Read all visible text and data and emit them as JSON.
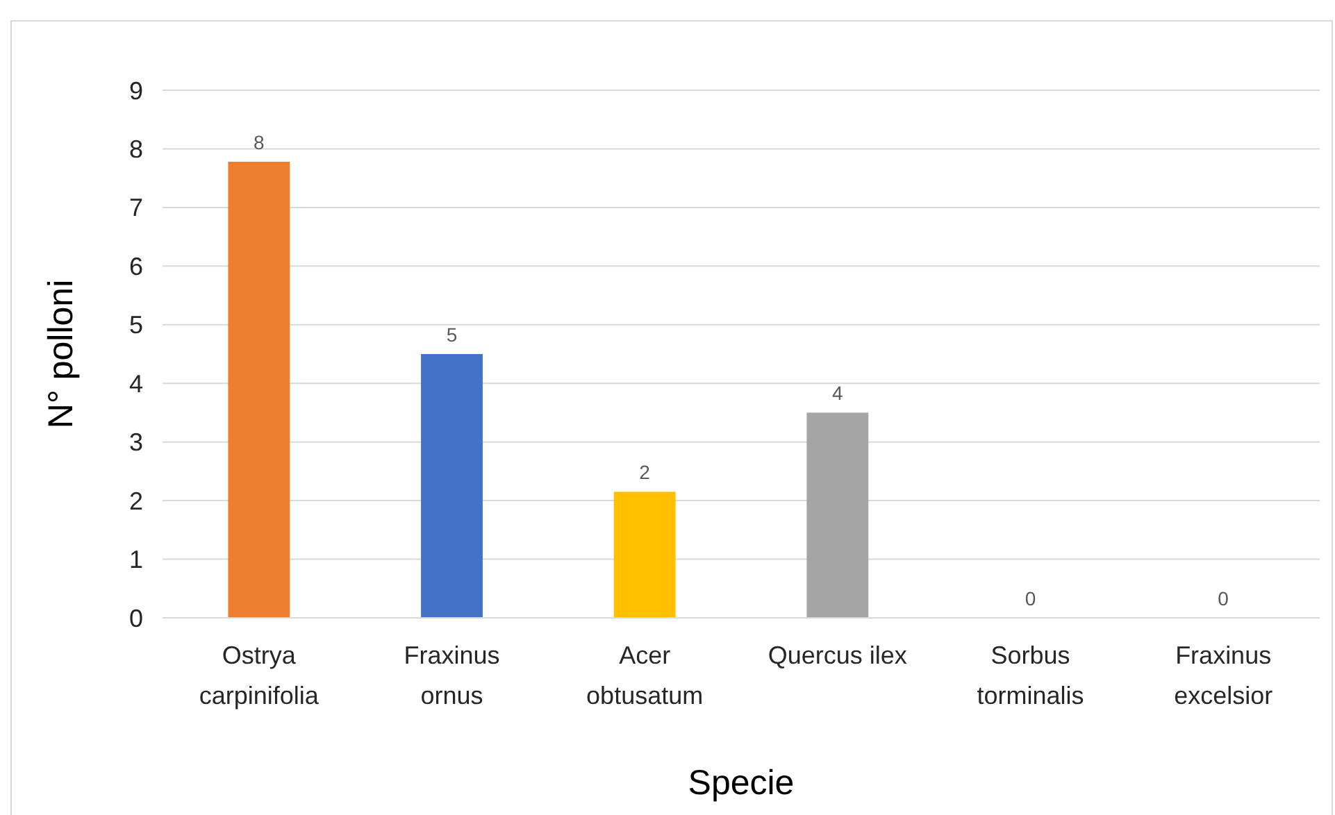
{
  "chart_data": {
    "type": "bar",
    "xlabel": "Specie",
    "ylabel": "N° polloni",
    "categories": [
      "Ostrya carpinifolia",
      "Fraxinus ornus",
      "Acer obtusatum",
      "Quercus ilex",
      "Sorbus torminalis",
      "Fraxinus excelsior"
    ],
    "values": [
      7.78,
      4.5,
      2.15,
      3.5,
      0,
      0
    ],
    "colors": [
      "#ed7d31",
      "#4472c4",
      "#ffc000",
      "#a5a5a5",
      "#5b9bd5",
      "#70ad47"
    ],
    "value_labels": [
      "8",
      "5",
      "2",
      "4",
      "0",
      "0"
    ],
    "ylim": [
      0,
      9
    ],
    "yticks": [
      0,
      1,
      2,
      3,
      4,
      5,
      6,
      7,
      8,
      9
    ],
    "grid": "y"
  }
}
